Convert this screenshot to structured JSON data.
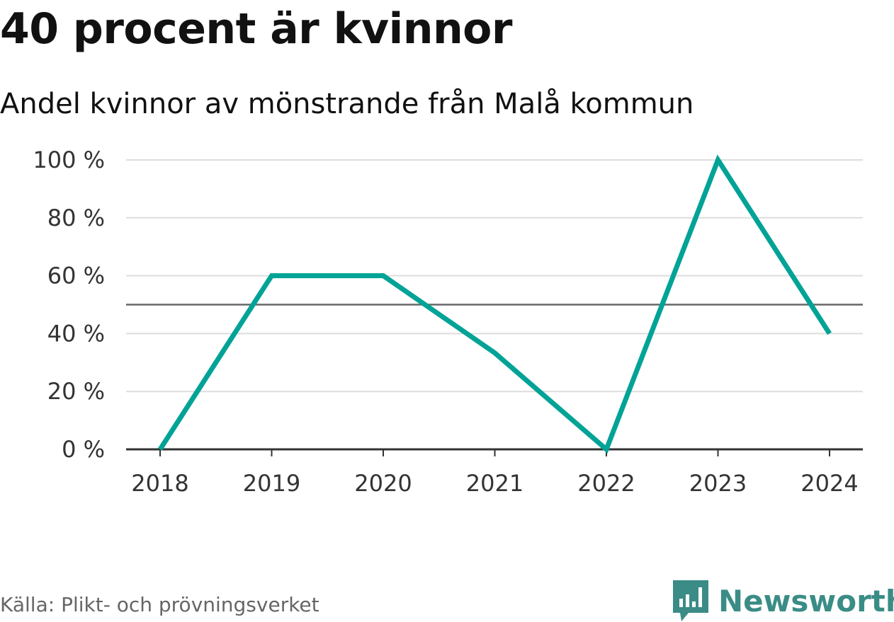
{
  "title": "40 procent är kvinnor",
  "subtitle": "Andel kvinnor av mönstrande från Malå kommun",
  "source": "Källa: Plikt- och prövningsverket",
  "brand": {
    "name": "Newsworthy",
    "color": "#3b8c86",
    "icon": "bar-chart-icon"
  },
  "colors": {
    "line": "#00a396",
    "grid": "#dddddd",
    "reference": "#666666",
    "axis": "#333333"
  },
  "chart_data": {
    "type": "line",
    "categories": [
      "2018",
      "2019",
      "2020",
      "2021",
      "2022",
      "2023",
      "2024"
    ],
    "series": [
      {
        "values": [
          0,
          60,
          60,
          33.3,
          0,
          100,
          40
        ]
      }
    ],
    "ylim": [
      0,
      100
    ],
    "yticks": [
      0,
      20,
      40,
      60,
      80,
      100
    ],
    "ytick_labels": [
      "0 %",
      "20 %",
      "40 %",
      "60 %",
      "80 %",
      "100 %"
    ],
    "reference_line": 50,
    "grid": true,
    "xlabel": "",
    "ylabel": ""
  }
}
